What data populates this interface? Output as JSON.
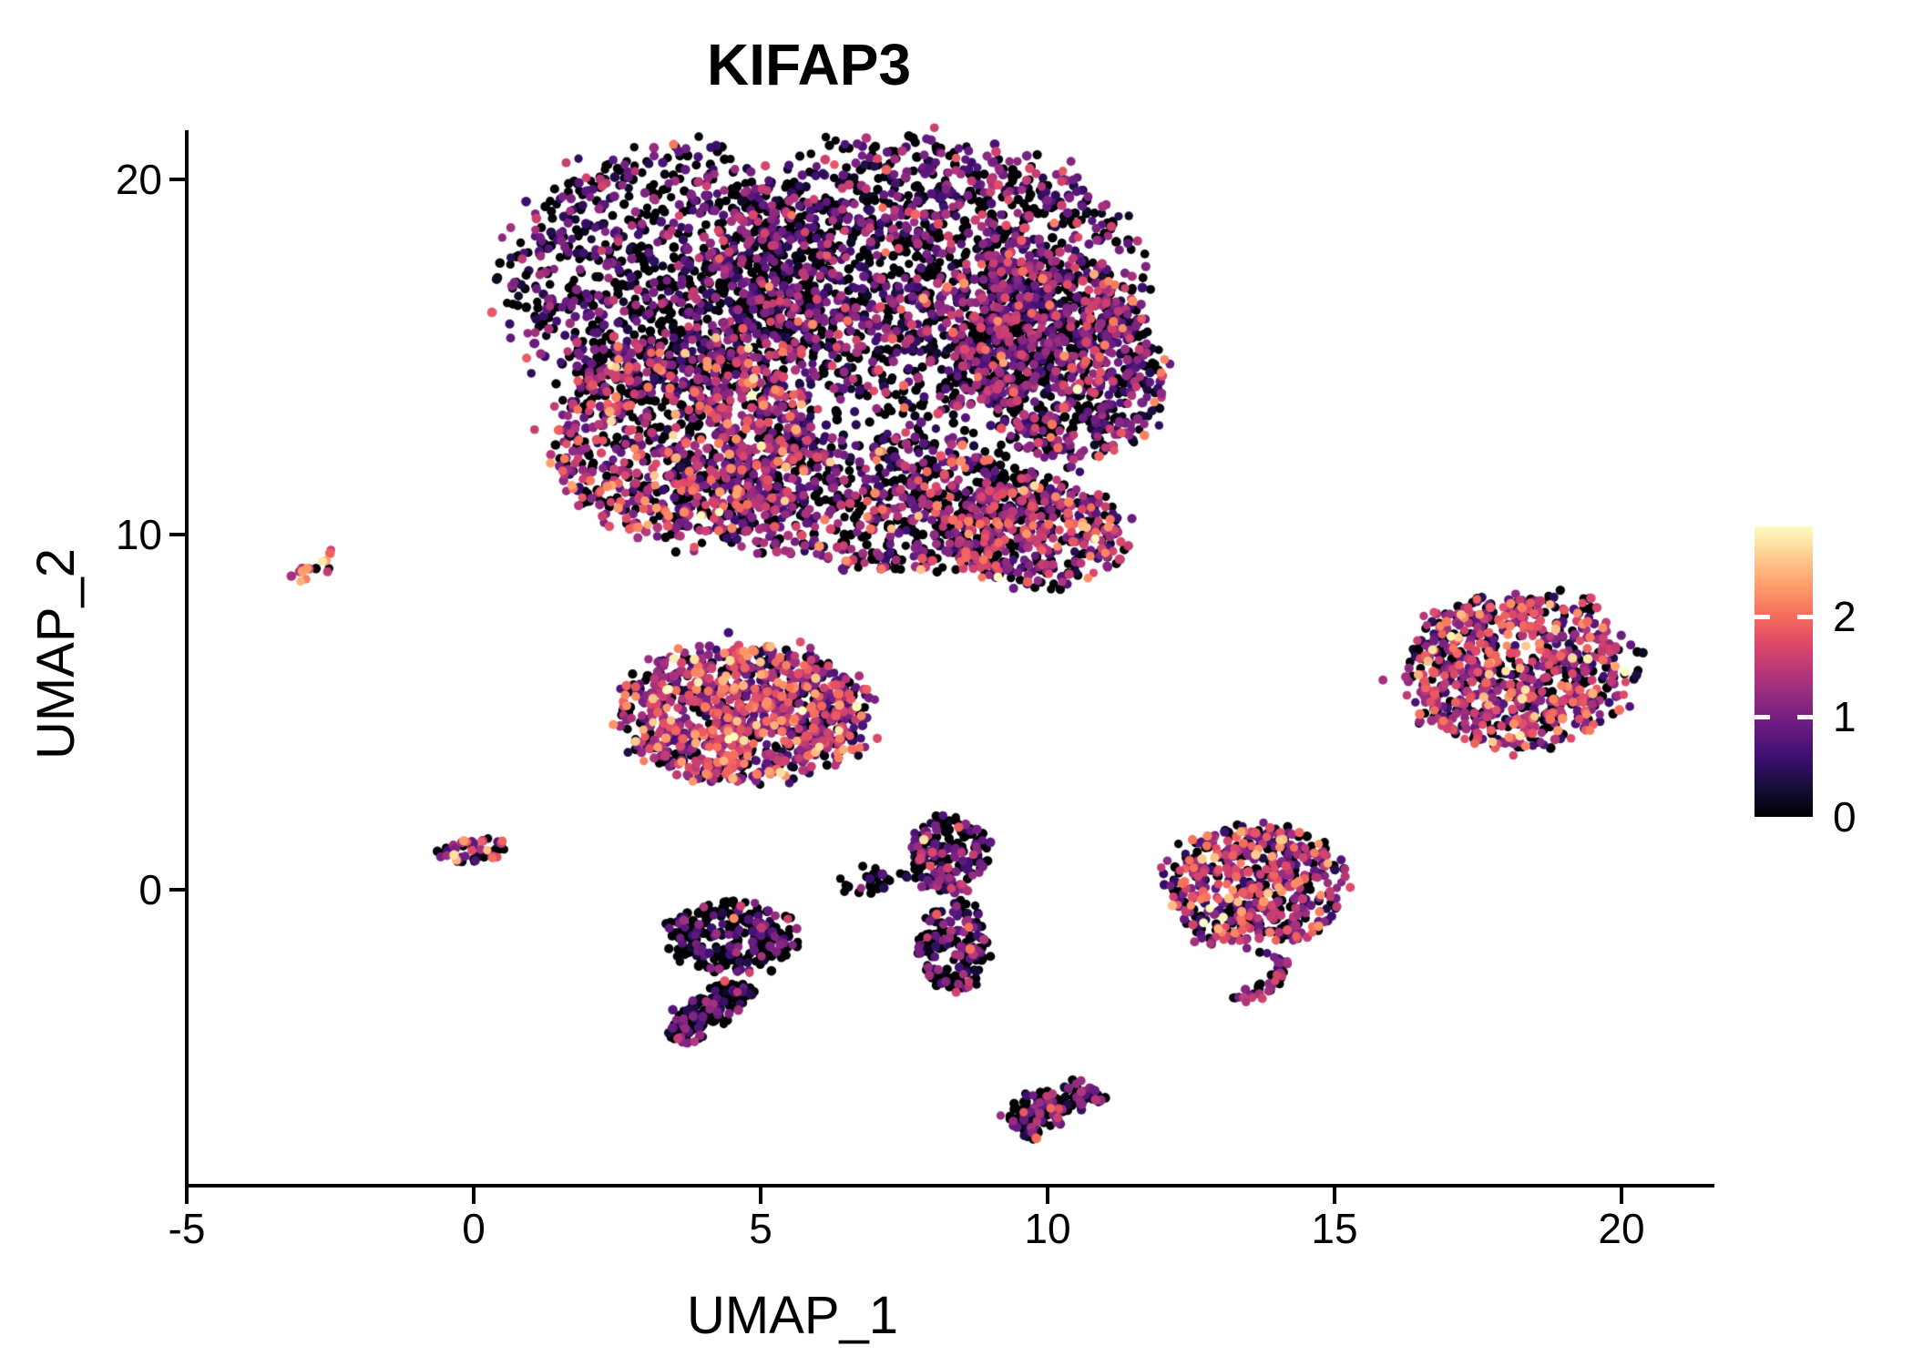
{
  "title": "KIFAP3",
  "colors": {
    "background": "#ffffff",
    "axis": "#000000",
    "text": "#000000",
    "colorbar_tick": "#ffffff"
  },
  "chart_data": {
    "type": "scatter",
    "title": "KIFAP3",
    "xlabel": "UMAP_1",
    "ylabel": "UMAP_2",
    "xlim": [
      -5.2,
      21.6
    ],
    "ylim": [
      -8.3,
      21.4
    ],
    "x_ticks": [
      -5,
      0,
      5,
      10,
      15,
      20
    ],
    "y_ticks": [
      0,
      10,
      20
    ],
    "grid": false,
    "point_radius_px": 5,
    "legend": {
      "type": "colorbar",
      "position": "right",
      "ticks": [
        0,
        1,
        2
      ],
      "vmin": 0,
      "vmax": 2.9
    },
    "colormap": {
      "name": "magma",
      "stops": [
        [
          0.0,
          "#000004"
        ],
        [
          0.1,
          "#140e36"
        ],
        [
          0.2,
          "#3b0f70"
        ],
        [
          0.3,
          "#641a80"
        ],
        [
          0.4,
          "#8c2981"
        ],
        [
          0.5,
          "#b73779"
        ],
        [
          0.6,
          "#de4968"
        ],
        [
          0.7,
          "#f7705c"
        ],
        [
          0.8,
          "#fe9f6d"
        ],
        [
          0.9,
          "#fecf92"
        ],
        [
          1.0,
          "#fcfdbf"
        ]
      ]
    },
    "clusters": [
      {
        "name": "main-lobe-top-left",
        "shape": "ellipse",
        "cx": 3.35,
        "cy": 17.4,
        "rx": 2.75,
        "ry": 3.55,
        "rot": -5,
        "n": 950,
        "expr": {
          "p0": 0.5,
          "mu": 0.85,
          "sigma": 0.45
        }
      },
      {
        "name": "main-lobe-top-mid",
        "shape": "ellipse",
        "cx": 7.8,
        "cy": 17.3,
        "rx": 3.7,
        "ry": 3.8,
        "rot": 0,
        "n": 1500,
        "expr": {
          "p0": 0.44,
          "mu": 0.95,
          "sigma": 0.5
        }
      },
      {
        "name": "main-lobe-right",
        "shape": "ellipse",
        "cx": 10.2,
        "cy": 15.0,
        "rx": 1.7,
        "ry": 2.9,
        "rot": 10,
        "n": 750,
        "expr": {
          "p0": 0.38,
          "mu": 1.05,
          "sigma": 0.5
        }
      },
      {
        "name": "main-lobe-lower-left",
        "shape": "ellipse",
        "cx": 3.6,
        "cy": 12.7,
        "rx": 2.2,
        "ry": 2.9,
        "rot": 0,
        "n": 850,
        "expr": {
          "p0": 0.34,
          "mu": 1.3,
          "sigma": 0.6
        }
      },
      {
        "name": "main-bottom-strip",
        "shape": "ellipse",
        "cx": 6.9,
        "cy": 10.9,
        "rx": 3.4,
        "ry": 1.9,
        "rot": -8,
        "n": 750,
        "expr": {
          "p0": 0.42,
          "mu": 1.15,
          "sigma": 0.55
        }
      },
      {
        "name": "main-bottom-right",
        "shape": "ellipse",
        "cx": 9.8,
        "cy": 10.0,
        "rx": 1.55,
        "ry": 1.5,
        "rot": -15,
        "n": 380,
        "expr": {
          "p0": 0.4,
          "mu": 1.2,
          "sigma": 0.6
        }
      },
      {
        "name": "main-sparse-fill",
        "shape": "ellipse",
        "cx": 6.9,
        "cy": 14.6,
        "rx": 4.8,
        "ry": 4.4,
        "rot": 0,
        "n": 650,
        "expr": {
          "p0": 0.5,
          "mu": 0.9,
          "sigma": 0.5
        }
      },
      {
        "name": "left-streak",
        "shape": "streak",
        "x1": -3.1,
        "y1": 8.7,
        "x2": -2.3,
        "y2": 9.5,
        "w": 0.22,
        "bend": 0,
        "n": 16,
        "expr": {
          "p0": 0.13,
          "mu": 1.95,
          "sigma": 0.45
        }
      },
      {
        "name": "mid-left-cluster",
        "shape": "ellipse",
        "cx": 4.7,
        "cy": 5.0,
        "rx": 2.15,
        "ry": 1.95,
        "rot": -8,
        "n": 1000,
        "expr": {
          "p0": 0.22,
          "mu": 1.35,
          "sigma": 0.6
        }
      },
      {
        "name": "origin-clump",
        "shape": "ellipse",
        "cx": 0.0,
        "cy": 1.1,
        "rx": 0.62,
        "ry": 0.34,
        "rot": 8,
        "n": 48,
        "expr": {
          "p0": 0.28,
          "mu": 1.5,
          "sigma": 0.55
        }
      },
      {
        "name": "dark-blob",
        "shape": "ellipse",
        "cx": 4.5,
        "cy": -1.3,
        "rx": 1.15,
        "ry": 1.0,
        "rot": 0,
        "n": 260,
        "expr": {
          "p0": 0.66,
          "mu": 0.75,
          "sigma": 0.45
        }
      },
      {
        "name": "dark-streak",
        "shape": "streak",
        "x1": 4.75,
        "y1": -2.7,
        "x2": 3.55,
        "y2": -4.25,
        "w": 0.42,
        "bend": -0.1,
        "n": 190,
        "expr": {
          "p0": 0.68,
          "mu": 0.7,
          "sigma": 0.4
        }
      },
      {
        "name": "tiny-clump",
        "shape": "ellipse",
        "cx": 6.8,
        "cy": 0.25,
        "rx": 0.5,
        "ry": 0.42,
        "rot": 0,
        "n": 26,
        "expr": {
          "p0": 0.7,
          "mu": 0.7,
          "sigma": 0.35
        }
      },
      {
        "name": "tiny-trail",
        "shape": "streak",
        "x1": 7.35,
        "y1": 0.5,
        "x2": 8.0,
        "y2": 0.3,
        "w": 0.12,
        "bend": 0,
        "n": 7,
        "expr": {
          "p0": 0.7,
          "mu": 0.6,
          "sigma": 0.3
        }
      },
      {
        "name": "vertical-cluster-top",
        "shape": "ellipse",
        "cx": 8.3,
        "cy": 1.0,
        "rx": 0.68,
        "ry": 1.1,
        "rot": 0,
        "n": 190,
        "expr": {
          "p0": 0.52,
          "mu": 0.95,
          "sigma": 0.5
        }
      },
      {
        "name": "vertical-cluster-bottom",
        "shape": "ellipse",
        "cx": 8.35,
        "cy": -1.55,
        "rx": 0.62,
        "ry": 1.3,
        "rot": 0,
        "n": 170,
        "expr": {
          "p0": 0.52,
          "mu": 0.95,
          "sigma": 0.5
        }
      },
      {
        "name": "right-mid-cluster",
        "shape": "ellipse",
        "cx": 13.6,
        "cy": 0.1,
        "rx": 1.6,
        "ry": 1.7,
        "rot": 0,
        "n": 520,
        "expr": {
          "p0": 0.3,
          "mu": 1.25,
          "sigma": 0.6
        }
      },
      {
        "name": "right-mid-tail",
        "shape": "streak",
        "x1": 14.1,
        "y1": -1.8,
        "x2": 13.3,
        "y2": -3.1,
        "w": 0.26,
        "bend": 0.25,
        "n": 42,
        "expr": {
          "p0": 0.45,
          "mu": 1.0,
          "sigma": 0.5
        }
      },
      {
        "name": "far-right-cluster",
        "shape": "ellipse",
        "cx": 18.2,
        "cy": 6.2,
        "rx": 1.95,
        "ry": 2.2,
        "rot": -10,
        "n": 800,
        "expr": {
          "p0": 0.28,
          "mu": 1.35,
          "sigma": 0.6
        }
      },
      {
        "name": "bottom-cluster",
        "shape": "streak",
        "x1": 9.45,
        "y1": -6.75,
        "x2": 10.85,
        "y2": -5.65,
        "w": 0.5,
        "bend": 0.15,
        "n": 175,
        "expr": {
          "p0": 0.58,
          "mu": 0.9,
          "sigma": 0.5
        }
      }
    ]
  }
}
